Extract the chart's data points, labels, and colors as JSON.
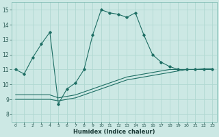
{
  "xlabel": "Humidex (Indice chaleur)",
  "background_color": "#cce8e4",
  "grid_color": "#b0d8d2",
  "line_color": "#1e6e64",
  "xlim": [
    -0.5,
    23.5
  ],
  "ylim": [
    7.5,
    15.5
  ],
  "xticks": [
    0,
    1,
    2,
    3,
    4,
    5,
    6,
    7,
    8,
    9,
    10,
    11,
    12,
    13,
    14,
    15,
    16,
    17,
    18,
    19,
    20,
    21,
    22,
    23
  ],
  "yticks": [
    8,
    9,
    10,
    11,
    12,
    13,
    14,
    15
  ],
  "series1_x": [
    0,
    1,
    2,
    3,
    4,
    5,
    6,
    7,
    8,
    9,
    10,
    11,
    12,
    13,
    14,
    15,
    16,
    17,
    18,
    19,
    20,
    21,
    22,
    23
  ],
  "series1_y": [
    11.0,
    10.7,
    11.8,
    12.7,
    13.5,
    8.7,
    9.7,
    10.1,
    11.0,
    13.3,
    15.0,
    14.8,
    14.7,
    14.5,
    14.8,
    13.3,
    12.0,
    11.5,
    11.2,
    11.0,
    11.0,
    11.0,
    11.0,
    11.0
  ],
  "series2_x": [
    0,
    1,
    2,
    3,
    4,
    5,
    6,
    7,
    8,
    9,
    10,
    11,
    12,
    13,
    14,
    15,
    16,
    17,
    18,
    19,
    20,
    21,
    22,
    23
  ],
  "series2_y": [
    9.3,
    9.3,
    9.3,
    9.3,
    9.3,
    9.1,
    9.2,
    9.3,
    9.5,
    9.7,
    9.9,
    10.1,
    10.3,
    10.5,
    10.6,
    10.7,
    10.8,
    10.9,
    11.0,
    11.0,
    11.0,
    11.0,
    11.05,
    11.05
  ],
  "series3_x": [
    0,
    1,
    2,
    3,
    4,
    5,
    6,
    7,
    8,
    9,
    10,
    11,
    12,
    13,
    14,
    15,
    16,
    17,
    18,
    19,
    20,
    21,
    22,
    23
  ],
  "series3_y": [
    9.0,
    9.0,
    9.0,
    9.0,
    9.0,
    8.9,
    9.0,
    9.1,
    9.3,
    9.5,
    9.7,
    9.9,
    10.1,
    10.3,
    10.4,
    10.5,
    10.6,
    10.7,
    10.8,
    10.9,
    11.0,
    11.0,
    11.0,
    11.0
  ]
}
